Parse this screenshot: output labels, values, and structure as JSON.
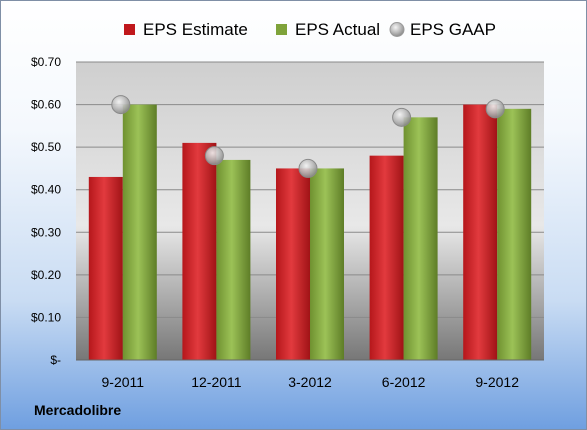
{
  "footer": {
    "company": "Mercadolibre"
  },
  "colors": {
    "estimate": "#c0181c",
    "actual": "#7fa33a",
    "gaap": "#a8a8a8"
  },
  "chart_data": {
    "type": "bar",
    "title": "",
    "xlabel": "",
    "ylabel": "",
    "categories": [
      "9-2011",
      "12-2011",
      "3-2012",
      "6-2012",
      "9-2012"
    ],
    "series": [
      {
        "name": "EPS Estimate",
        "kind": "bar",
        "values": [
          0.43,
          0.51,
          0.45,
          0.48,
          0.6
        ]
      },
      {
        "name": "EPS Actual",
        "kind": "bar",
        "values": [
          0.6,
          0.47,
          0.45,
          0.57,
          0.59
        ]
      },
      {
        "name": "EPS GAAP",
        "kind": "marker",
        "values": [
          0.6,
          0.48,
          0.45,
          0.57,
          0.59
        ]
      }
    ],
    "ylim": [
      0,
      0.7
    ],
    "yticks": [
      {
        "value": 0,
        "label": "$-"
      },
      {
        "value": 0.1,
        "label": "$0.10"
      },
      {
        "value": 0.2,
        "label": "$0.20"
      },
      {
        "value": 0.3,
        "label": "$0.30"
      },
      {
        "value": 0.4,
        "label": "$0.40"
      },
      {
        "value": 0.5,
        "label": "$0.50"
      },
      {
        "value": 0.6,
        "label": "$0.60"
      },
      {
        "value": 0.7,
        "label": "$0.70"
      }
    ],
    "grid": true,
    "legend": "top"
  }
}
